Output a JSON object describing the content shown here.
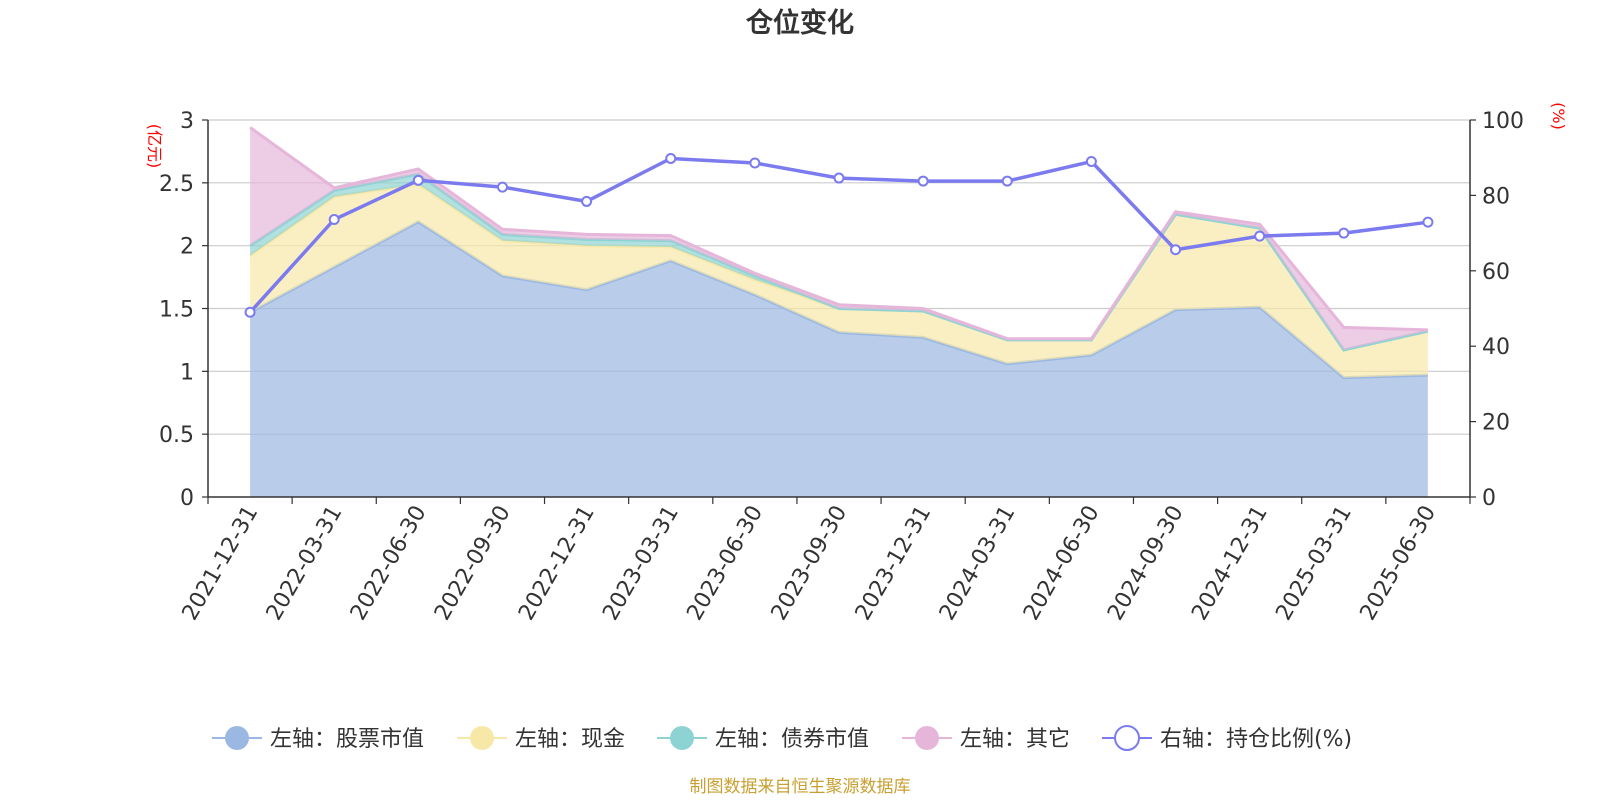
{
  "chart_data": {
    "type": "area",
    "title": "仓位变化",
    "categories": [
      "2021-12-31",
      "2022-03-31",
      "2022-06-30",
      "2022-09-30",
      "2022-12-31",
      "2023-03-31",
      "2023-06-30",
      "2023-09-30",
      "2023-12-31",
      "2024-03-31",
      "2024-06-30",
      "2024-09-30",
      "2024-12-31",
      "2025-03-31",
      "2025-06-30"
    ],
    "left_axis": {
      "unit": "(亿元)",
      "ylim": [
        0,
        3
      ],
      "ticks": [
        "0",
        "0.5",
        "1",
        "1.5",
        "2",
        "2.5",
        "3"
      ],
      "tick_values": [
        0,
        0.5,
        1,
        1.5,
        2,
        2.5,
        3
      ]
    },
    "right_axis": {
      "unit": "(%)",
      "ylim": [
        0,
        100
      ],
      "ticks": [
        "0",
        "20",
        "40",
        "60",
        "80",
        "100"
      ],
      "tick_values": [
        0,
        20,
        40,
        60,
        80,
        100
      ]
    },
    "series": [
      {
        "name": "左轴：股票市值",
        "axis": "left",
        "stacked": true,
        "color": "#9bb8e2",
        "values": [
          1.47,
          1.83,
          2.19,
          1.76,
          1.65,
          1.88,
          1.61,
          1.31,
          1.27,
          1.06,
          1.13,
          1.49,
          1.51,
          0.95,
          0.97
        ]
      },
      {
        "name": "左轴：现金",
        "axis": "left",
        "stacked": true,
        "color": "#f8e8a8",
        "values": [
          0.45,
          0.56,
          0.3,
          0.28,
          0.35,
          0.11,
          0.12,
          0.19,
          0.21,
          0.19,
          0.12,
          0.76,
          0.63,
          0.22,
          0.35
        ]
      },
      {
        "name": "左轴：债券市值",
        "axis": "left",
        "stacked": true,
        "color": "#8ed3d3",
        "values": [
          0.08,
          0.05,
          0.08,
          0.05,
          0.05,
          0.05,
          0.03,
          0,
          0,
          0,
          0,
          0,
          0,
          0,
          0
        ]
      },
      {
        "name": "左轴：其它",
        "axis": "left",
        "stacked": true,
        "color": "#e6b6da",
        "values": [
          0.94,
          0.02,
          0.04,
          0.04,
          0.04,
          0.04,
          0.02,
          0.03,
          0.02,
          0.01,
          0.01,
          0.02,
          0.03,
          0.18,
          0.01
        ]
      },
      {
        "name": "右轴：持仓比例(%)",
        "axis": "right",
        "type": "line",
        "color": "#7b7bef",
        "values": [
          49.0,
          73.6,
          84.0,
          82.2,
          78.4,
          89.8,
          88.6,
          84.6,
          83.8,
          83.8,
          89.0,
          65.6,
          69.2,
          70.0,
          72.9
        ]
      }
    ]
  },
  "footer": {
    "source": "制图数据来自恒生聚源数据库"
  }
}
